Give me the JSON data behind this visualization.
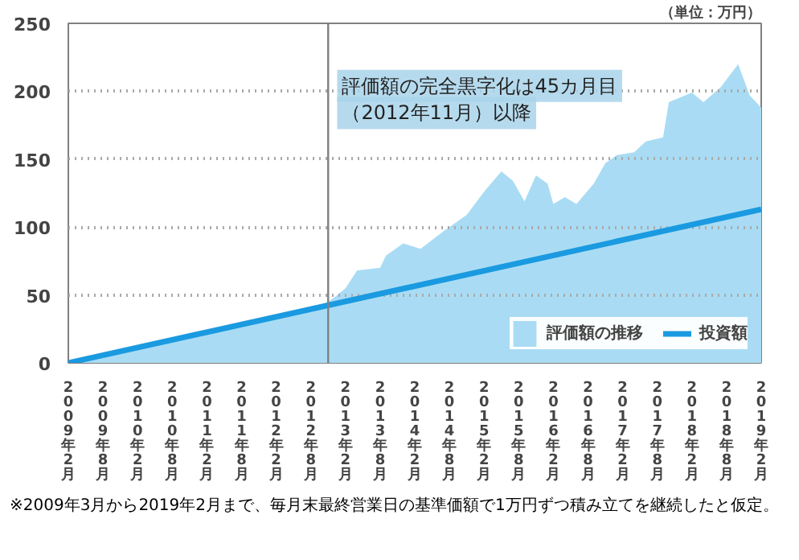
{
  "chart_data": {
    "type": "area",
    "ylabel": "（単位：万円）",
    "xlim": [
      "2009-02",
      "2019-02"
    ],
    "xticks": [
      {
        "value": "2009-02",
        "label": "2009年2月"
      },
      {
        "value": "2009-08",
        "label": "2009年8月"
      },
      {
        "value": "2010-02",
        "label": "2010年2月"
      },
      {
        "value": "2010-08",
        "label": "2010年8月"
      },
      {
        "value": "2011-02",
        "label": "2011年2月"
      },
      {
        "value": "2011-08",
        "label": "2011年8月"
      },
      {
        "value": "2012-02",
        "label": "2012年2月"
      },
      {
        "value": "2012-08",
        "label": "2012年8月"
      },
      {
        "value": "2013-02",
        "label": "2013年2月"
      },
      {
        "value": "2013-08",
        "label": "2013年8月"
      },
      {
        "value": "2014-02",
        "label": "2014年2月"
      },
      {
        "value": "2014-08",
        "label": "2014年8月"
      },
      {
        "value": "2015-02",
        "label": "2015年2月"
      },
      {
        "value": "2015-08",
        "label": "2015年8月"
      },
      {
        "value": "2016-02",
        "label": "2016年2月"
      },
      {
        "value": "2016-08",
        "label": "2016年8月"
      },
      {
        "value": "2017-02",
        "label": "2017年2月"
      },
      {
        "value": "2017-08",
        "label": "2017年8月"
      },
      {
        "value": "2018-02",
        "label": "2018年2月"
      },
      {
        "value": "2018-08",
        "label": "2018年8月"
      },
      {
        "value": "2019-02",
        "label": "2019年2月"
      }
    ],
    "ylim": [
      0,
      250
    ],
    "yticks": [
      0,
      50,
      100,
      150,
      200,
      250
    ],
    "grid": "y",
    "legend": "bottom right",
    "series": [
      {
        "name": "評価額の推移",
        "color": "#a9dcf4",
        "x": [
          "2009-02",
          "2009-08",
          "2010-02",
          "2010-08",
          "2011-02",
          "2011-08",
          "2012-02",
          "2012-08",
          "2012-11",
          "2012-12",
          "2013-02",
          "2013-04",
          "2013-08",
          "2013-09",
          "2013-12",
          "2014-03",
          "2014-07",
          "2014-11",
          "2015-02",
          "2015-05",
          "2015-07",
          "2015-09",
          "2015-11",
          "2016-01",
          "2016-02",
          "2016-04",
          "2016-06",
          "2016-09",
          "2016-11",
          "2017-01",
          "2017-04",
          "2017-06",
          "2017-09",
          "2017-10",
          "2018-02",
          "2018-04",
          "2018-07",
          "2018-10",
          "2018-12",
          "2019-02"
        ],
        "values": [
          0,
          5,
          11,
          16,
          23,
          26,
          33,
          40,
          45,
          48,
          55,
          68,
          70,
          79,
          88,
          84,
          97,
          109,
          126,
          141,
          134,
          119,
          138,
          132,
          117,
          122,
          117,
          132,
          147,
          153,
          155,
          163,
          166,
          192,
          199,
          192,
          203,
          220,
          197,
          188
        ]
      },
      {
        "name": "投資額",
        "type": "line",
        "color": "#1a9ae0",
        "x": [
          "2009-02",
          "2019-02"
        ],
        "values": [
          0,
          113
        ]
      }
    ],
    "ref_lines": [
      {
        "axis": "x",
        "value": "2012-11",
        "color": "#808080"
      }
    ],
    "annotations": [
      {
        "text": "評価額の完全黒字化は45カ月目",
        "x": "2012-11",
        "y": 204
      },
      {
        "text": "（2012年11月）以降",
        "x": "2012-11",
        "y": 184
      },
      "※2009年3月から2019年2月まで、毎月末最終営業日の基準価額で1万円ずつ積み立てを継続したと仮定。"
    ]
  }
}
